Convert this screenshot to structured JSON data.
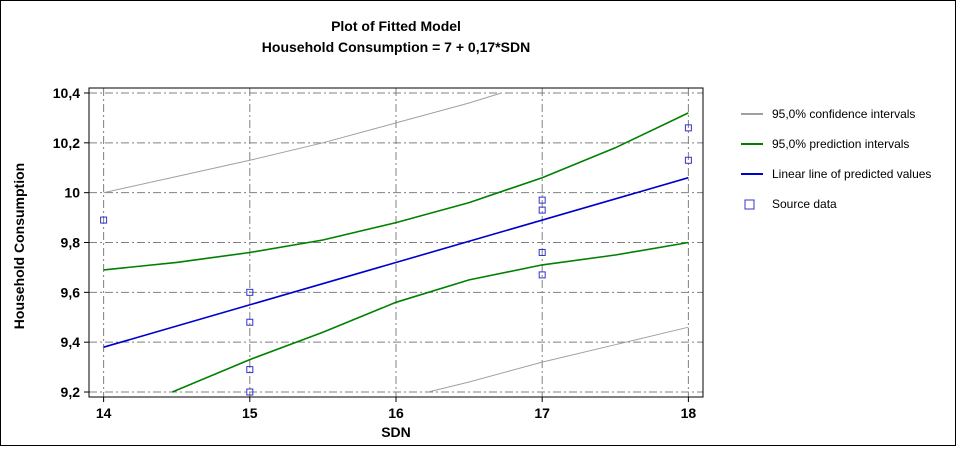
{
  "chart_data": {
    "type": "line",
    "title": "Plot of Fitted Model",
    "subtitle": "Household Consumption = 7 + 0,17*SDN",
    "xlabel": "SDN",
    "ylabel": "Household Consumption",
    "xlim": [
      13.9,
      18.1
    ],
    "ylim": [
      9.18,
      10.42
    ],
    "x_ticks": [
      14,
      15,
      16,
      17,
      18
    ],
    "x_tick_labels": [
      "14",
      "15",
      "16",
      "17",
      "18"
    ],
    "y_ticks": [
      9.2,
      9.4,
      9.6,
      9.8,
      10.0,
      10.2,
      10.4
    ],
    "y_tick_labels": [
      "9,2",
      "9,4",
      "9,6",
      "9,8",
      "10",
      "10,2",
      "10,4"
    ],
    "grid": true,
    "legend_position": "right",
    "series": [
      {
        "name": "95,0% confidence intervals",
        "kind": "band",
        "color": "#a0a0a0",
        "upper": {
          "x": [
            14,
            14.5,
            15,
            15.5,
            16,
            16.5,
            16.72
          ],
          "y": [
            10.0,
            10.065,
            10.13,
            10.2,
            10.28,
            10.36,
            10.4
          ]
        },
        "lower": {
          "x": [
            16.22,
            16.5,
            17,
            17.5,
            18
          ],
          "y": [
            9.2,
            9.24,
            9.32,
            9.39,
            9.46
          ]
        }
      },
      {
        "name": "95,0% prediction intervals",
        "kind": "band",
        "color": "#008000",
        "upper": {
          "x": [
            14,
            14.5,
            15,
            15.5,
            16,
            16.5,
            17,
            17.5,
            18
          ],
          "y": [
            9.69,
            9.72,
            9.76,
            9.81,
            9.88,
            9.96,
            10.06,
            10.18,
            10.32
          ]
        },
        "lower": {
          "x": [
            14.47,
            15,
            15.5,
            16,
            16.5,
            17,
            17.5,
            18
          ],
          "y": [
            9.2,
            9.33,
            9.44,
            9.56,
            9.65,
            9.71,
            9.75,
            9.8
          ]
        }
      },
      {
        "name": "Linear line of predicted values",
        "kind": "line",
        "color": "#0000cc",
        "x": [
          14,
          18
        ],
        "y": [
          9.38,
          10.06
        ]
      },
      {
        "name": "Source data",
        "kind": "scatter",
        "color": "#3333cc",
        "x": [
          14,
          15,
          15,
          15,
          15,
          17,
          17,
          17,
          17,
          18,
          18
        ],
        "y": [
          9.89,
          9.6,
          9.48,
          9.29,
          9.2,
          9.97,
          9.93,
          9.76,
          9.67,
          10.26,
          10.13
        ]
      }
    ]
  }
}
